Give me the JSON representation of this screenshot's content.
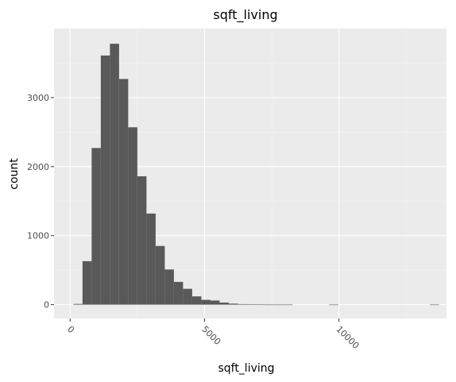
{
  "chart_data": {
    "type": "bar",
    "title": "sqft_living",
    "xlabel": "sqft_living",
    "ylabel": "count",
    "xlim": [
      -600,
      14000
    ],
    "ylim": [
      -200,
      4000
    ],
    "x_ticks": [
      0,
      5000,
      10000
    ],
    "x_tick_labels": [
      "0",
      "5000",
      "10000"
    ],
    "y_ticks": [
      0,
      1000,
      2000,
      3000
    ],
    "y_tick_labels": [
      "0",
      "1000",
      "2000",
      "3000"
    ],
    "bin_width": 340,
    "bin_centers": [
      290,
      630,
      970,
      1310,
      1650,
      1990,
      2330,
      2670,
      3010,
      3350,
      3690,
      4030,
      4370,
      4710,
      5050,
      5390,
      5730,
      6070,
      6410,
      6750,
      7090,
      7430,
      7770,
      8110,
      8450,
      8790,
      9130,
      9470,
      9810,
      10150,
      10490,
      10830,
      11170,
      11510,
      11850,
      12190,
      12530,
      12870,
      13210,
      13550
    ],
    "values": [
      10,
      630,
      2270,
      3610,
      3780,
      3270,
      2570,
      1860,
      1320,
      850,
      510,
      330,
      230,
      120,
      70,
      60,
      30,
      15,
      8,
      3,
      2,
      1,
      1,
      1,
      0,
      0,
      0,
      0,
      1,
      0,
      0,
      0,
      0,
      0,
      0,
      0,
      0,
      0,
      0,
      1
    ],
    "bar_color": "#595959",
    "panel_background": "#ebebeb",
    "grid": true,
    "grid_color": "#ffffff",
    "legend": "none"
  }
}
